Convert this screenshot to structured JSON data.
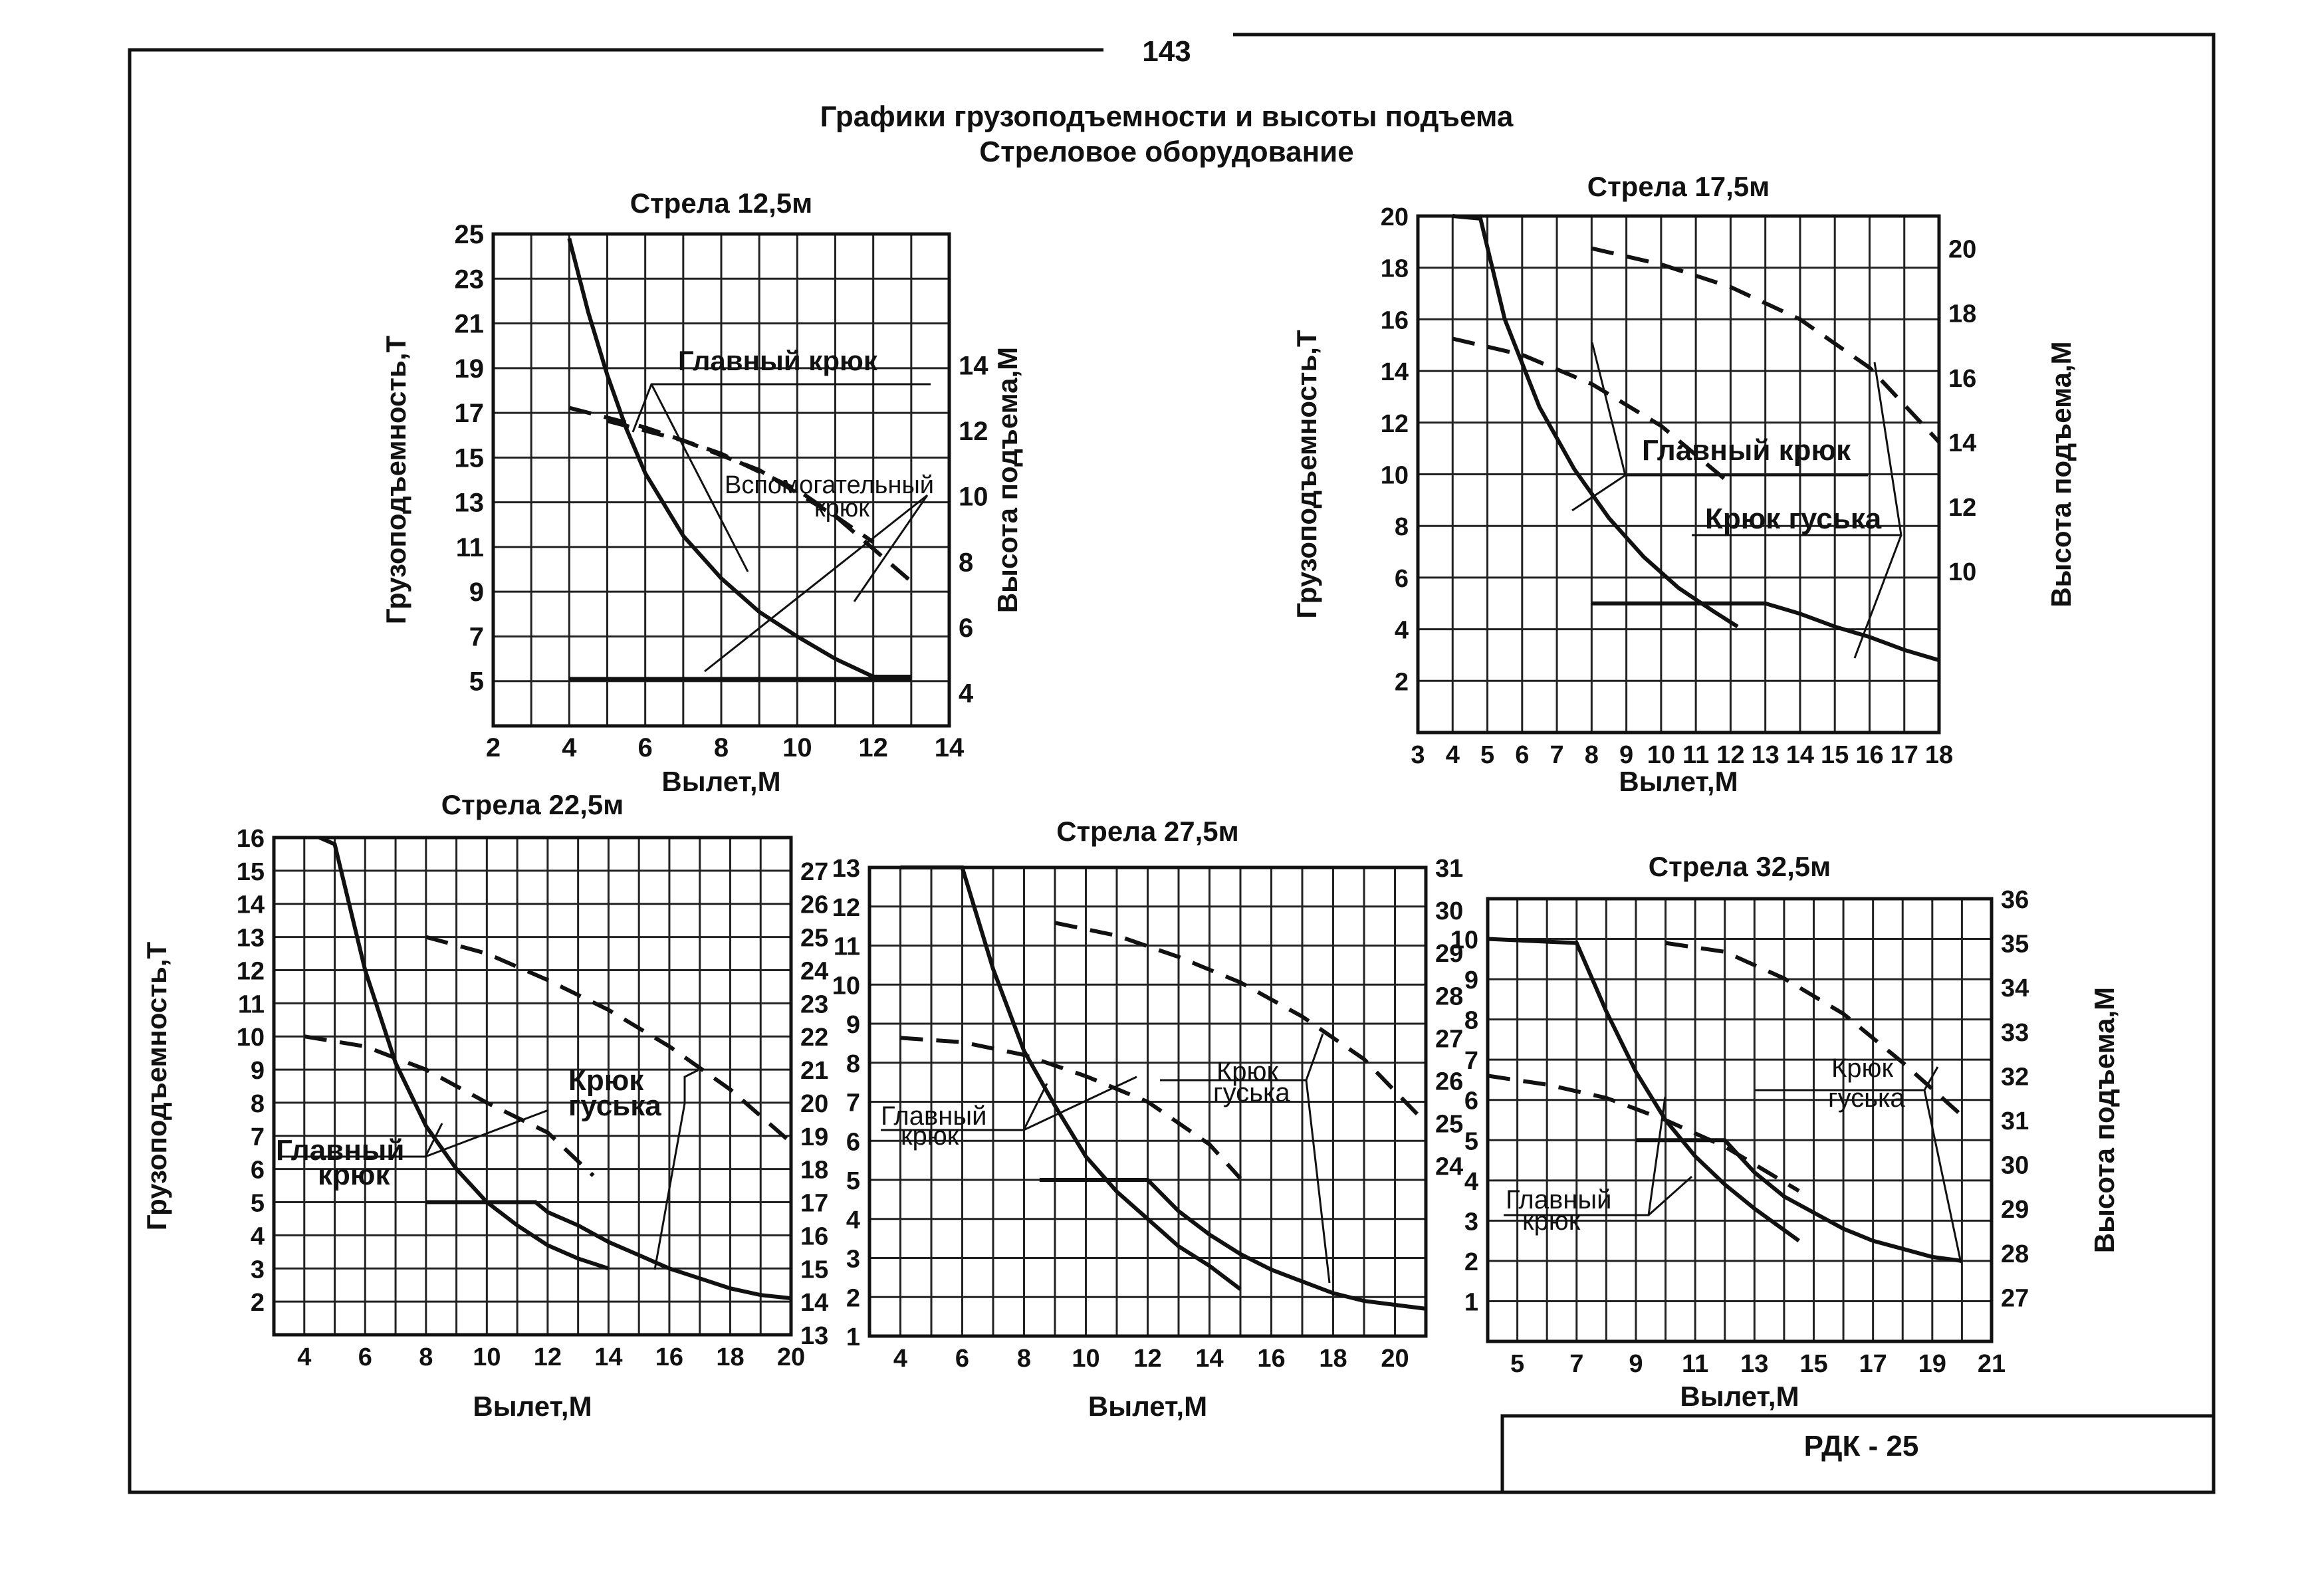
{
  "page": {
    "page_number": "143",
    "title_line1": "Графики грузоподъемности и высоты подъема",
    "title_line2": "Стреловое оборудование",
    "stamp": "РДК - 25"
  },
  "chart_data": [
    {
      "type": "line",
      "title": "Стрела 12,5м",
      "xlabel": "Вылет,М",
      "ylabel_left": "Грузоподъемность,Т",
      "ylabel_right": "Высота подъема,М",
      "xlim": [
        2,
        14
      ],
      "x_ticks": [
        "2",
        "4",
        "6",
        "8",
        "10",
        "12",
        "14"
      ],
      "ylim_left": [
        3,
        25
      ],
      "y_ticks_left": [
        "5",
        "7",
        "9",
        "11",
        "13",
        "15",
        "17",
        "19",
        "21",
        "23",
        "25"
      ],
      "ylim_right": [
        3,
        18
      ],
      "y_ticks_right": [
        "4",
        "6",
        "8",
        "10",
        "12",
        "14"
      ],
      "series": [
        {
          "name": "Главный крюк",
          "axis": "left",
          "style": "solid",
          "x": [
            4,
            4.5,
            5,
            5.5,
            6,
            7,
            8,
            9,
            10,
            11,
            12,
            13
          ],
          "y": [
            24.8,
            21.5,
            18.7,
            16.3,
            14.3,
            11.5,
            9.6,
            8.1,
            7.0,
            6.0,
            5.2,
            5.2
          ]
        },
        {
          "name": "Вспомогательный крюк",
          "axis": "left",
          "style": "solid",
          "x": [
            4,
            13
          ],
          "y": [
            5.1,
            5.1
          ]
        },
        {
          "name": "Главный крюк",
          "axis": "right",
          "style": "dashed",
          "x": [
            4,
            6,
            8,
            10,
            12
          ],
          "y": [
            12.7,
            12.1,
            11.3,
            10.2,
            8.6
          ]
        },
        {
          "name": "Вспомогательный крюк",
          "axis": "right",
          "style": "dashed",
          "x": [
            5,
            7,
            9,
            11,
            13
          ],
          "y": [
            12.3,
            11.7,
            10.8,
            9.4,
            7.4
          ]
        }
      ]
    },
    {
      "type": "line",
      "title": "Стрела 17,5м",
      "xlabel": "Вылет,М",
      "ylabel_left": "Грузоподъемность,Т",
      "ylabel_right": "Высота подъема,М",
      "xlim": [
        3,
        18
      ],
      "x_ticks": [
        "3",
        "4",
        "5",
        "6",
        "7",
        "8",
        "9",
        "10",
        "11",
        "12",
        "13",
        "14",
        "15",
        "16",
        "17",
        "18"
      ],
      "ylim_left": [
        0,
        20
      ],
      "y_ticks_left": [
        "2",
        "4",
        "6",
        "8",
        "10",
        "12",
        "14",
        "16",
        "18",
        "20"
      ],
      "ylim_right": [
        5,
        21
      ],
      "y_ticks_right": [
        "10",
        "12",
        "14",
        "16",
        "18",
        "20"
      ],
      "series": [
        {
          "name": "Главный крюк",
          "axis": "left",
          "style": "solid",
          "x": [
            4,
            4.8,
            5.5,
            6.5,
            7.5,
            8.5,
            9.5,
            10.5,
            11.5,
            12.2
          ],
          "y": [
            20,
            19.9,
            16.0,
            12.6,
            10.2,
            8.3,
            6.8,
            5.6,
            4.7,
            4.1
          ]
        },
        {
          "name": "Крюк гуська",
          "axis": "left",
          "style": "solid",
          "x": [
            8,
            10,
            12,
            13,
            14,
            15,
            16,
            17,
            18
          ],
          "y": [
            5.0,
            5.0,
            5.0,
            5.0,
            4.6,
            4.1,
            3.7,
            3.2,
            2.8
          ]
        },
        {
          "name": "Главный крюк",
          "axis": "right",
          "style": "dashed",
          "x": [
            4,
            6,
            8,
            10,
            12
          ],
          "y": [
            17.2,
            16.7,
            15.8,
            14.5,
            12.7
          ]
        },
        {
          "name": "Крюк гуська",
          "axis": "right",
          "style": "dashed",
          "x": [
            8,
            10,
            12,
            14,
            16,
            18
          ],
          "y": [
            20.0,
            19.5,
            18.8,
            17.8,
            16.3,
            14.0
          ]
        }
      ]
    },
    {
      "type": "line",
      "title": "Стрела 22,5м",
      "xlabel": "Вылет,М",
      "ylabel_left": "Грузоподъемность,Т",
      "ylabel_right": "",
      "xlim": [
        3,
        20
      ],
      "x_ticks": [
        "4",
        "6",
        "8",
        "10",
        "12",
        "14",
        "16",
        "18",
        "20"
      ],
      "ylim_left": [
        1,
        16
      ],
      "y_ticks_left": [
        "2",
        "3",
        "4",
        "5",
        "6",
        "7",
        "8",
        "9",
        "10",
        "11",
        "12",
        "13",
        "14",
        "15",
        "16"
      ],
      "ylim_right": [
        13,
        28
      ],
      "y_ticks_right": [
        "13",
        "14",
        "15",
        "16",
        "17",
        "18",
        "19",
        "20",
        "21",
        "22",
        "23",
        "24",
        "25",
        "26",
        "27"
      ],
      "series": [
        {
          "name": "Главный крюк",
          "axis": "left",
          "style": "solid",
          "x": [
            4.5,
            5,
            6,
            7,
            8,
            9,
            10,
            11,
            12,
            13,
            14
          ],
          "y": [
            16.0,
            15.8,
            12.0,
            9.2,
            7.3,
            6.0,
            5.0,
            4.3,
            3.7,
            3.3,
            3.0
          ]
        },
        {
          "name": "Крюк гуська",
          "axis": "left",
          "style": "solid",
          "x": [
            8,
            10,
            11.6,
            12,
            13,
            14,
            15,
            16,
            17,
            18,
            19,
            20
          ],
          "y": [
            5.0,
            5.0,
            5.0,
            4.7,
            4.3,
            3.8,
            3.4,
            3.0,
            2.7,
            2.4,
            2.2,
            2.1
          ]
        },
        {
          "name": "Главный крюк",
          "axis": "right",
          "style": "dashed",
          "x": [
            4,
            6,
            8,
            10,
            12,
            13.5
          ],
          "y": [
            22.0,
            21.7,
            21.0,
            20.0,
            19.1,
            17.8
          ]
        },
        {
          "name": "Крюк гуська",
          "axis": "right",
          "style": "dashed",
          "x": [
            8,
            10,
            12,
            14,
            16,
            18,
            20
          ],
          "y": [
            25.0,
            24.5,
            23.7,
            22.8,
            21.7,
            20.4,
            18.8
          ]
        }
      ]
    },
    {
      "type": "line",
      "title": "Стрела 27,5м",
      "xlabel": "Вылет,М",
      "ylabel_left": "",
      "ylabel_right": "",
      "xlim": [
        3,
        21
      ],
      "x_ticks": [
        "4",
        "6",
        "8",
        "10",
        "12",
        "14",
        "16",
        "18",
        "20"
      ],
      "ylim_left": [
        1,
        13
      ],
      "y_ticks_left": [
        "1",
        "2",
        "3",
        "4",
        "5",
        "6",
        "7",
        "8",
        "9",
        "10",
        "11",
        "12",
        "13"
      ],
      "ylim_right": [
        20,
        31
      ],
      "y_ticks_right": [
        "24",
        "25",
        "26",
        "27",
        "28",
        "29",
        "30",
        "31"
      ],
      "series": [
        {
          "name": "Главный крюк",
          "axis": "left",
          "style": "solid",
          "x": [
            4,
            6,
            7,
            8,
            9,
            10,
            11,
            12,
            13,
            14,
            15
          ],
          "y": [
            13.0,
            13.0,
            10.4,
            8.3,
            6.9,
            5.6,
            4.7,
            4.0,
            3.3,
            2.8,
            2.2
          ]
        },
        {
          "name": "Крюк гуська",
          "axis": "left",
          "style": "solid",
          "x": [
            8.5,
            10,
            12,
            13,
            14,
            15,
            16,
            17,
            18,
            19,
            20,
            21
          ],
          "y": [
            5.0,
            5.0,
            5.0,
            4.2,
            3.6,
            3.1,
            2.7,
            2.4,
            2.1,
            1.9,
            1.8,
            1.7
          ]
        },
        {
          "name": "Главный крюк",
          "axis": "right",
          "style": "dashed",
          "x": [
            4,
            6,
            8,
            10,
            12,
            14,
            15
          ],
          "y": [
            27.0,
            26.9,
            26.6,
            26.1,
            25.5,
            24.5,
            23.7
          ]
        },
        {
          "name": "Крюк гуська",
          "axis": "right",
          "style": "dashed",
          "x": [
            9,
            11,
            13,
            15,
            17,
            19,
            21
          ],
          "y": [
            29.7,
            29.4,
            28.9,
            28.3,
            27.5,
            26.5,
            25.0
          ]
        }
      ]
    },
    {
      "type": "line",
      "title": "Стрела 32,5м",
      "xlabel": "Вылет,М",
      "ylabel_left": "",
      "ylabel_right": "Высота подъема,М",
      "xlim": [
        4,
        21
      ],
      "x_ticks": [
        "5",
        "7",
        "9",
        "11",
        "13",
        "15",
        "17",
        "19",
        "21"
      ],
      "ylim_left": [
        0,
        11
      ],
      "y_ticks_left": [
        "1",
        "2",
        "3",
        "4",
        "5",
        "6",
        "7",
        "8",
        "9",
        "10"
      ],
      "ylim_right": [
        26,
        36
      ],
      "y_ticks_right": [
        "27",
        "28",
        "29",
        "30",
        "31",
        "32",
        "33",
        "34",
        "35",
        "36"
      ],
      "series": [
        {
          "name": "Главный крюк",
          "axis": "left",
          "style": "solid",
          "x": [
            4,
            7,
            8,
            9,
            10,
            11,
            12,
            13,
            14.5
          ],
          "y": [
            10.0,
            9.9,
            8.2,
            6.7,
            5.5,
            4.6,
            3.9,
            3.3,
            2.5
          ]
        },
        {
          "name": "Крюк гуська",
          "axis": "left",
          "style": "solid",
          "x": [
            9,
            11,
            12,
            13,
            14,
            15,
            16,
            17,
            18,
            19,
            20
          ],
          "y": [
            5.0,
            5.0,
            5.0,
            4.2,
            3.6,
            3.2,
            2.8,
            2.5,
            2.3,
            2.1,
            2.0
          ]
        },
        {
          "name": "Главный крюк",
          "axis": "right",
          "style": "dashed",
          "x": [
            4,
            6,
            8,
            10,
            12,
            14.5
          ],
          "y": [
            32.0,
            31.8,
            31.5,
            31.0,
            30.4,
            29.4
          ]
        },
        {
          "name": "Крюк гуська",
          "axis": "right",
          "style": "dashed",
          "x": [
            10,
            12,
            14,
            16,
            18,
            20
          ],
          "y": [
            35.0,
            34.8,
            34.2,
            33.4,
            32.3,
            31.1
          ]
        }
      ]
    }
  ],
  "labels": {
    "c1_main_hook": "Главный крюк",
    "c1_aux_hook_1": "Вспомогательный",
    "c1_aux_hook_2": "крюк",
    "c2_main_hook": "Главный крюк",
    "c2_jib_hook": "Крюк гуська",
    "c3_main_1": "Главный",
    "c3_main_2": "крюк",
    "c3_jib_1": "Крюк",
    "c3_jib_2": "гуська",
    "c4_main_1": "Главный",
    "c4_main_2": "крюк",
    "c4_jib_1": "Крюк",
    "c4_jib_2": "гуська",
    "c5_main_1": "Главный",
    "c5_main_2": "крюк",
    "c5_jib_1": "Крюк",
    "c5_jib_2": "гуська"
  }
}
